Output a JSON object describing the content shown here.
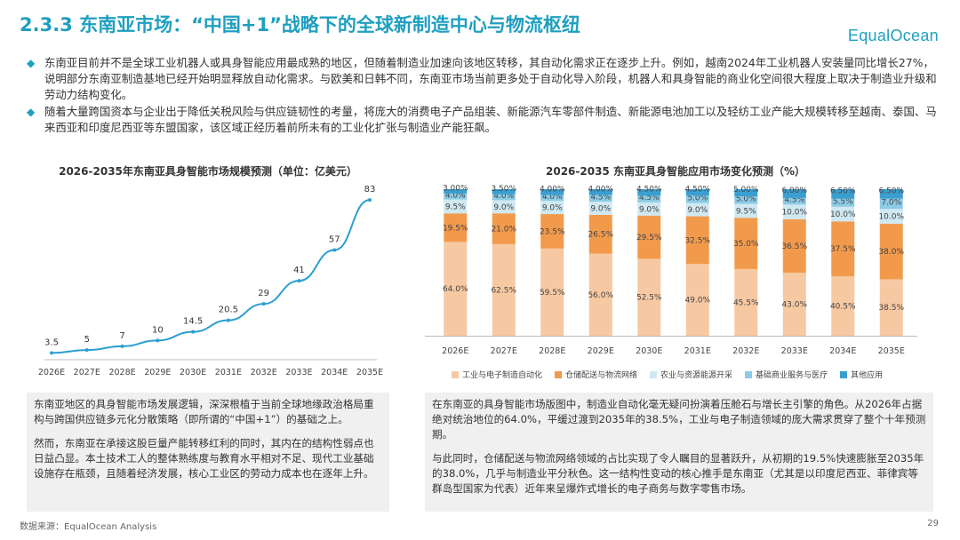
{
  "header": {
    "title": "2.3.3 东南亚市场：“中国+1”战略下的全球新制造中心与物流枢纽",
    "logo": "EqualOcean"
  },
  "bullets": [
    "东南亚目前并不是全球工业机器人或具身智能应用最成熟的地区，但随着制造业加速向该地区转移，其自动化需求正在逐步上升。例如，越南2024年工业机器人安装量同比增长27%，说明部分东南亚制造基地已经开始明显释放自动化需求。与欧美和日韩不同，东南亚市场当前更多处于自动化导入阶段，机器人和具身智能的商业化空间很大程度上取决于制造业升级和劳动力结构变化。",
    "随着大量跨国资本与企业出于降低关税风险与供应链韧性的考量，将庞大的消费电子产品组装、新能源汽车零部件制造、新能源电池加工以及轻纺工业产能大规模转移至越南、泰国、马来西亚和印度尼西亚等东盟国家，该区域正经历着前所未有的工业化扩张与制造业产能狂飙。"
  ],
  "chart_data": [
    {
      "type": "line",
      "title": "2026-2035年东南亚具身智能市场规模预测（单位：亿美元）",
      "categories": [
        "2026E",
        "2027E",
        "2028E",
        "2029E",
        "2030E",
        "2031E",
        "2032E",
        "2033E",
        "2034E",
        "2035E"
      ],
      "values": [
        3.5,
        5,
        7,
        10,
        14.5,
        20.5,
        29,
        41,
        57,
        83
      ],
      "labels": [
        "3.5",
        "5",
        "7",
        "10",
        "14.5",
        "20.5",
        "29",
        "41",
        "57",
        "83"
      ],
      "ylim": [
        0,
        90
      ],
      "color": "#2a9fd0"
    },
    {
      "type": "bar",
      "stacked": true,
      "title": "2026-2035 东南亚具身智能应用市场变化预测（%）",
      "categories": [
        "2026E",
        "2027E",
        "2028E",
        "2029E",
        "2030E",
        "2031E",
        "2032E",
        "2033E",
        "2034E",
        "2035E"
      ],
      "series": [
        {
          "name": "工业与电子制造自动化",
          "color": "#f7c9a2",
          "values": [
            64.0,
            62.5,
            59.5,
            56.0,
            52.5,
            49.0,
            45.5,
            43.0,
            40.5,
            38.5
          ],
          "labels": [
            "64.0%",
            "62.5%",
            "59.5%",
            "56.0%",
            "52.5%",
            "49.0%",
            "45.5%",
            "43.0%",
            "40.5%",
            "38.5%"
          ]
        },
        {
          "name": "仓储配送与物流网络",
          "color": "#f29a4c",
          "values": [
            19.5,
            21.0,
            23.5,
            26.5,
            29.5,
            32.5,
            35.0,
            36.5,
            37.5,
            38.0
          ],
          "labels": [
            "19.5%",
            "21.0%",
            "23.5%",
            "26.5%",
            "29.5%",
            "32.5%",
            "35.0%",
            "36.5%",
            "37.5%",
            "38.0%"
          ]
        },
        {
          "name": "农业与资源能源开采",
          "color": "#cfe8f2",
          "values": [
            9.5,
            9.0,
            9.0,
            9.0,
            9.0,
            9.0,
            9.5,
            10.0,
            10.0,
            10.0
          ],
          "labels": [
            "9.5%",
            "9.0%",
            "9.0%",
            "9.0%",
            "9.0%",
            "9.0%",
            "9.5%",
            "10.0%",
            "10.0%",
            "10.0%"
          ]
        },
        {
          "name": "基础商业服务与医疗",
          "color": "#8ccbe6",
          "values": [
            4.0,
            4.0,
            4.0,
            4.5,
            4.5,
            5.0,
            5.0,
            4.5,
            5.5,
            7.0
          ],
          "labels": [
            "4.0%",
            "4.0%",
            "4.0%",
            "4.5%",
            "4.5%",
            "5.0%",
            "5.0%",
            "4.5%",
            "5.5%",
            "7.0%"
          ]
        },
        {
          "name": "其他应用",
          "color": "#3a9fd0",
          "values": [
            3.0,
            3.5,
            4.0,
            4.0,
            4.5,
            4.5,
            5.0,
            6.0,
            6.5,
            6.5
          ],
          "labels": [
            "3.00%",
            "3.50%",
            "4.00%",
            "4.00%",
            "4.50%",
            "4.50%",
            "5.00%",
            "6.00%",
            "6.50%",
            "6.50%"
          ]
        }
      ],
      "ylim": [
        0,
        100
      ]
    }
  ],
  "boxes": {
    "left": [
      "东南亚地区的具身智能市场发展逻辑，深深根植于当前全球地缘政治格局重构与跨国供应链多元化分散策略（即所谓的“中国+1”）的基础之上。",
      "然而，东南亚在承接这股巨量产能转移红利的同时，其内在的结构性弱点也日益凸显。本土技术工人的整体熟练度与教育水平相对不足、现代工业基础设施存在瓶颈，且随着经济发展，核心工业区的劳动力成本也在逐年上升。"
    ],
    "right": [
      "在东南亚的具身智能市场版图中，制造业自动化毫无疑问扮演着压舱石与增长主引擎的角色。从2026年占据绝对统治地位的64.0%，平缓过渡到2035年的38.5%，工业与电子制造领域的庞大需求贯穿了整个十年预测期。",
      "与此同时，仓储配送与物流网络领域的占比实现了令人瞩目的显著跃升，从初期的19.5%快速膨胀至2035年的38.0%，几乎与制造业平分秋色。这一结构性变动的核心推手是东南亚（尤其是以印度尼西亚、菲律宾等群岛型国家为代表）近年来呈爆炸式增长的电子商务与数字零售市场。"
    ]
  },
  "footer": {
    "source": "数据来源：EqualOcean Analysis",
    "page": "29"
  }
}
